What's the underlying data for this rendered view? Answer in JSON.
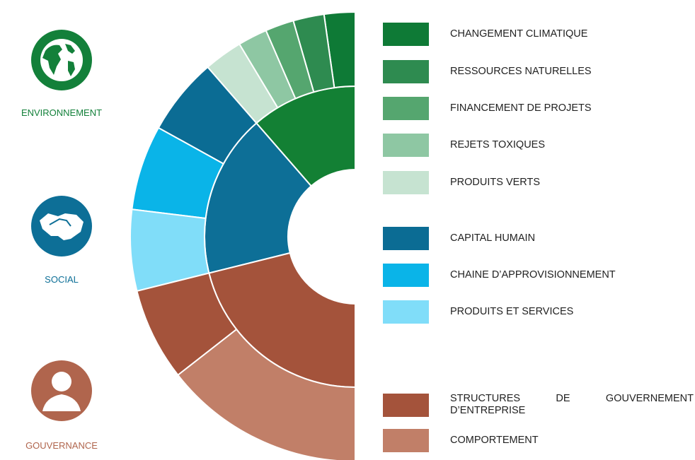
{
  "pillars": [
    {
      "label": "ENVIRONNEMENT",
      "items": [
        "CHANGEMENT CLIMATIQUE",
        "RESSOURCES NATURELLES",
        "FINANCEMENT DE PROJETS",
        "REJETS TOXIQUES",
        "PRODUITS VERTS"
      ]
    },
    {
      "label": "SOCIAL",
      "items": [
        "CAPITAL HUMAIN",
        "CHAINE D’APPROVISIONNEMENT",
        "PRODUITS ET SERVICES"
      ]
    },
    {
      "label": "GOUVERNANCE",
      "items": [
        "STRUCTURES DE GOUVERNEMENT D’ENTREPRISE",
        "COMPORTEMENT"
      ]
    }
  ]
}
